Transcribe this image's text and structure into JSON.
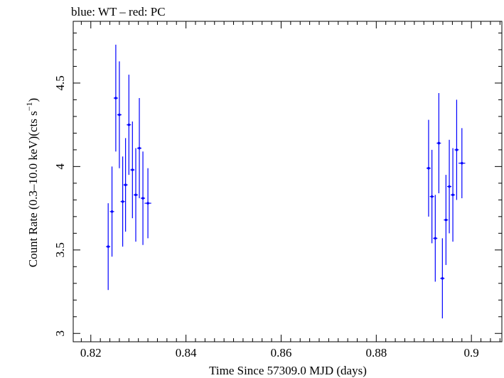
{
  "chart_data": {
    "type": "scatter",
    "title": "blue: WT – red: PC",
    "xlabel": "Time Since 57309.0 MJD (days)",
    "ylabel": "Count Rate (0.3–10.0 keV)(cts s",
    "ylabel_sup": "−1",
    "ylabel_tail": ")",
    "xlim": [
      0.8163,
      0.9064
    ],
    "ylim": [
      2.95,
      4.87
    ],
    "x_ticks": [
      0.82,
      0.84,
      0.86,
      0.88,
      0.9
    ],
    "x_tick_labels": [
      "0.82",
      "0.84",
      "0.86",
      "0.88",
      "0.9"
    ],
    "y_ticks": [
      3,
      3.5,
      4,
      4.5
    ],
    "y_tick_labels": [
      "3",
      "3.5",
      "4",
      "4.5"
    ],
    "grid": false,
    "series": [
      {
        "color": "#0000ff",
        "points": [
          {
            "x": 0.82365,
            "y": 3.52,
            "err": 0.26,
            "xerr": 0.00045
          },
          {
            "x": 0.82445,
            "y": 3.73,
            "err": 0.27,
            "xerr": 0.00045
          },
          {
            "x": 0.82525,
            "y": 4.41,
            "err": 0.32,
            "xerr": 0.00045
          },
          {
            "x": 0.826,
            "y": 4.31,
            "err": 0.32,
            "xerr": 0.00045
          },
          {
            "x": 0.8267,
            "y": 3.79,
            "err": 0.27,
            "xerr": 0.00045
          },
          {
            "x": 0.8273,
            "y": 3.89,
            "err": 0.28,
            "xerr": 0.00045
          },
          {
            "x": 0.828,
            "y": 4.25,
            "err": 0.3,
            "xerr": 0.00045
          },
          {
            "x": 0.82875,
            "y": 3.98,
            "err": 0.29,
            "xerr": 0.00045
          },
          {
            "x": 0.82945,
            "y": 3.83,
            "err": 0.28,
            "xerr": 0.00045
          },
          {
            "x": 0.8302,
            "y": 4.11,
            "err": 0.3,
            "xerr": 0.00045
          },
          {
            "x": 0.83095,
            "y": 3.81,
            "err": 0.28,
            "xerr": 0.00045
          },
          {
            "x": 0.832,
            "y": 3.78,
            "err": 0.21,
            "xerr": 0.0007
          },
          {
            "x": 0.891,
            "y": 3.99,
            "err": 0.29,
            "xerr": 0.00045
          },
          {
            "x": 0.8917,
            "y": 3.82,
            "err": 0.28,
            "xerr": 0.00045
          },
          {
            "x": 0.8924,
            "y": 3.57,
            "err": 0.26,
            "xerr": 0.00045
          },
          {
            "x": 0.89315,
            "y": 4.14,
            "err": 0.3,
            "xerr": 0.00045
          },
          {
            "x": 0.8939,
            "y": 3.33,
            "err": 0.24,
            "xerr": 0.00045
          },
          {
            "x": 0.89465,
            "y": 3.68,
            "err": 0.27,
            "xerr": 0.00045
          },
          {
            "x": 0.89535,
            "y": 3.88,
            "err": 0.28,
            "xerr": 0.00045
          },
          {
            "x": 0.8961,
            "y": 3.83,
            "err": 0.28,
            "xerr": 0.00045
          },
          {
            "x": 0.8969,
            "y": 4.1,
            "err": 0.3,
            "xerr": 0.00045
          },
          {
            "x": 0.898,
            "y": 4.02,
            "err": 0.21,
            "xerr": 0.0007
          }
        ]
      }
    ]
  }
}
